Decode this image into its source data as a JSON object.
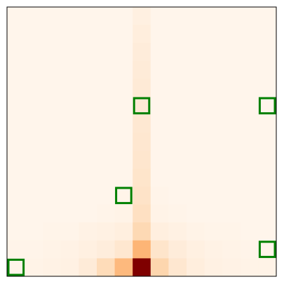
{
  "chart_data": {
    "type": "heatmap",
    "rows": 15,
    "cols": 15,
    "colormap": "Oranges",
    "vmin": 0,
    "vmax": 1,
    "grid": false,
    "center_col": 7,
    "bottom_row_values": [
      0.01,
      0.02,
      0.03,
      0.04,
      0.1,
      0.22,
      0.4,
      1.0,
      0.26,
      0.14,
      0.07,
      0.04,
      0.03,
      0.02,
      0.02
    ],
    "column_values_top_to_bottom": [
      0.05,
      0.07,
      0.09,
      0.1,
      0.11,
      0.12,
      0.13,
      0.14,
      0.15,
      0.16,
      0.17,
      0.19,
      0.24,
      0.42,
      1.0
    ],
    "row_spreads": [
      {
        "row": 14,
        "values": [
          0.01,
          0.02,
          0.03,
          0.04,
          0.1,
          0.22,
          0.4,
          1.0,
          0.26,
          0.14,
          0.07,
          0.04,
          0.03,
          0.02,
          0.02
        ]
      },
      {
        "row": 13,
        "values": [
          0.01,
          0.01,
          0.02,
          0.03,
          0.05,
          0.08,
          0.14,
          0.42,
          0.16,
          0.09,
          0.05,
          0.03,
          0.02,
          0.01,
          0.01
        ]
      },
      {
        "row": 12,
        "values": [
          0.0,
          0.0,
          0.01,
          0.01,
          0.03,
          0.04,
          0.06,
          0.24,
          0.06,
          0.04,
          0.02,
          0.01,
          0.01,
          0.0,
          0.0
        ]
      },
      {
        "row": 11,
        "values": [
          0.0,
          0.0,
          0.0,
          0.0,
          0.0,
          0.01,
          0.02,
          0.19,
          0.02,
          0.01,
          0.0,
          0.0,
          0.0,
          0.0,
          0.0
        ]
      },
      {
        "row": 10,
        "values": [
          0.0,
          0.0,
          0.0,
          0.0,
          0.0,
          0.0,
          0.01,
          0.17,
          0.01,
          0.0,
          0.0,
          0.0,
          0.0,
          0.0,
          0.0
        ]
      }
    ],
    "highlighted_cells": [
      {
        "row": 5,
        "col": 7
      },
      {
        "row": 5,
        "col": 14
      },
      {
        "row": 10,
        "col": 6
      },
      {
        "row": 13,
        "col": 14
      },
      {
        "row": 14,
        "col": 0
      }
    ],
    "highlight_color": "#008000",
    "border_color": "#000000"
  }
}
